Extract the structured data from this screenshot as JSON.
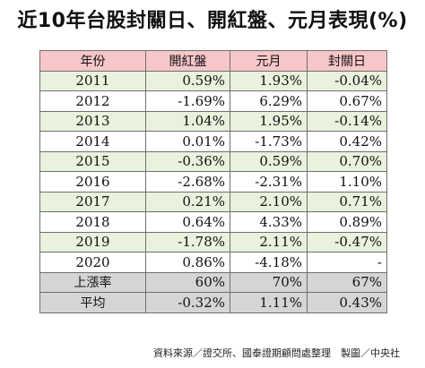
{
  "title": "近10年台股封關日、開紅盤、元月表現(%)",
  "table": {
    "headers": [
      "年份",
      "開紅盤",
      "元月",
      "封關日"
    ],
    "rows": [
      [
        "2011",
        "0.59%",
        "1.93%",
        "-0.04%"
      ],
      [
        "2012",
        "-1.69%",
        "6.29%",
        "0.67%"
      ],
      [
        "2013",
        "1.04%",
        "1.95%",
        "-0.14%"
      ],
      [
        "2014",
        "0.01%",
        "-1.73%",
        "0.42%"
      ],
      [
        "2015",
        "-0.36%",
        "0.59%",
        "0.70%"
      ],
      [
        "2016",
        "-2.68%",
        "-2.31%",
        "1.10%"
      ],
      [
        "2017",
        "0.21%",
        "2.10%",
        "0.71%"
      ],
      [
        "2018",
        "0.64%",
        "4.33%",
        "0.89%"
      ],
      [
        "2019",
        "-1.78%",
        "2.11%",
        "-0.47%"
      ],
      [
        "2020",
        "0.86%",
        "-4.18%",
        "-"
      ],
      [
        "上漲率",
        "60%",
        "70%",
        "67%"
      ],
      [
        "平均",
        "-0.32%",
        "1.11%",
        "0.43%"
      ]
    ],
    "row_colors": {
      "header": "#f7c6c9",
      "green": "#e8f2dc",
      "white": "#ffffff",
      "summary": "#d5d5d5",
      "border": "#6f6f6f"
    }
  },
  "source": "資料來源／證交所、國泰證期顧問處整理　製圖／中央社"
}
